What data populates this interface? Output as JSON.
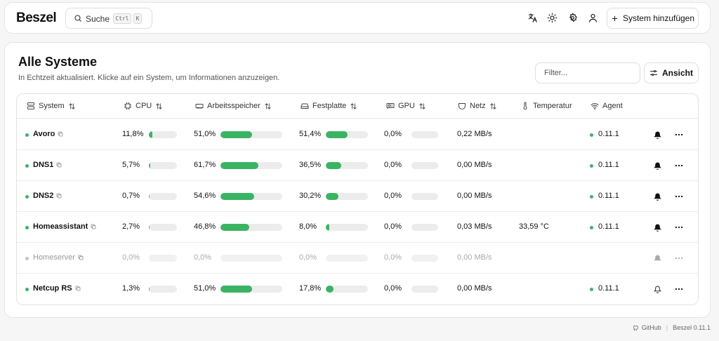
{
  "app": {
    "name": "Beszel"
  },
  "search": {
    "label": "Suche",
    "kbd_ctrl": "Ctrl",
    "kbd_key": "K"
  },
  "toolbar": {
    "add_system_label": "System hinzufügen"
  },
  "page": {
    "title": "Alle Systeme",
    "subtitle": "In Echtzeit aktualisiert. Klicke auf ein System, um Informationen anzuzeigen.",
    "filter_placeholder": "Filter...",
    "view_label": "Ansicht"
  },
  "columns": {
    "system": "System",
    "cpu": "CPU",
    "memory": "Arbeitsspeicher",
    "disk": "Festplatte",
    "gpu": "GPU",
    "net": "Netz",
    "temp": "Temperatur",
    "agent": "Agent"
  },
  "rows": [
    {
      "name": "Avoro",
      "online": true,
      "cpu": "11,8%",
      "cpu_pct": 11.8,
      "mem": "51,0%",
      "mem_pct": 51.0,
      "disk": "51,4%",
      "disk_pct": 51.4,
      "gpu": "0,0%",
      "gpu_pct": 0,
      "net": "0,22 MB/s",
      "temp": "",
      "agent": "0.11.1",
      "alerts": true
    },
    {
      "name": "DNS1",
      "online": true,
      "cpu": "5,7%",
      "cpu_pct": 5.7,
      "mem": "61,7%",
      "mem_pct": 61.7,
      "disk": "36,5%",
      "disk_pct": 36.5,
      "gpu": "0,0%",
      "gpu_pct": 0,
      "net": "0,00 MB/s",
      "temp": "",
      "agent": "0.11.1",
      "alerts": true
    },
    {
      "name": "DNS2",
      "online": true,
      "cpu": "0,7%",
      "cpu_pct": 0.7,
      "mem": "54,6%",
      "mem_pct": 54.6,
      "disk": "30,2%",
      "disk_pct": 30.2,
      "gpu": "0,0%",
      "gpu_pct": 0,
      "net": "0,00 MB/s",
      "temp": "",
      "agent": "0.11.1",
      "alerts": true
    },
    {
      "name": "Homeassistant",
      "online": true,
      "cpu": "2,7%",
      "cpu_pct": 2.7,
      "mem": "46,8%",
      "mem_pct": 46.8,
      "disk": "8,0%",
      "disk_pct": 8.0,
      "gpu": "0,0%",
      "gpu_pct": 0,
      "net": "0,03 MB/s",
      "temp": "33,59 °C",
      "agent": "0.11.1",
      "alerts": true
    },
    {
      "name": "Homeserver",
      "online": false,
      "cpu": "0,0%",
      "cpu_pct": 0,
      "mem": "0,0%",
      "mem_pct": 0,
      "disk": "0,0%",
      "disk_pct": 0,
      "gpu": "0,0%",
      "gpu_pct": 0,
      "net": "0,00 MB/s",
      "temp": "",
      "agent": "",
      "alerts": true
    },
    {
      "name": "Netcup RS",
      "online": true,
      "cpu": "1,3%",
      "cpu_pct": 1.3,
      "mem": "51,0%",
      "mem_pct": 51.0,
      "disk": "17,8%",
      "disk_pct": 17.8,
      "gpu": "0,0%",
      "gpu_pct": 0,
      "net": "0,00 MB/s",
      "temp": "",
      "agent": "0.11.1",
      "alerts": false
    }
  ],
  "footer": {
    "github": "GitHub",
    "version": "Beszel 0.11.1"
  },
  "colors": {
    "bar_fill": "#3ab463",
    "online": "#3ab463",
    "offline": "#c4c4c4"
  }
}
